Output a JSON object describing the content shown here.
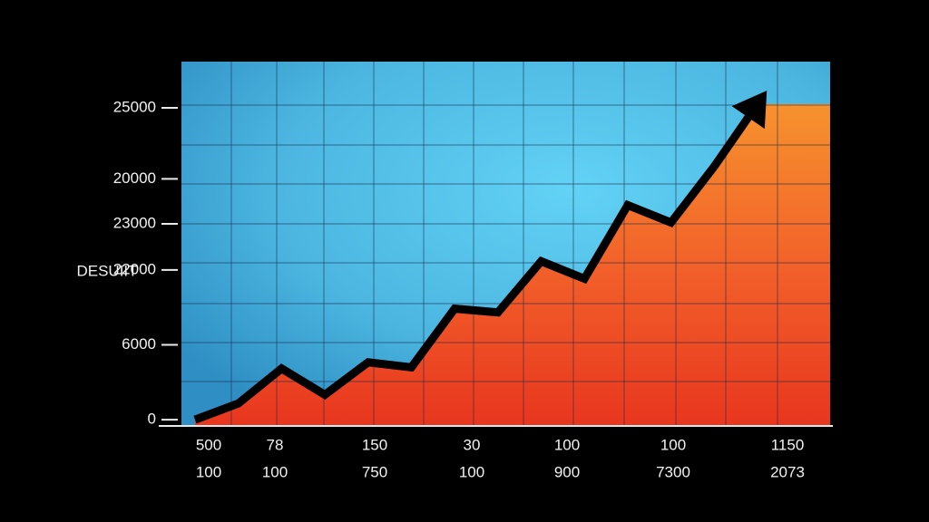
{
  "chart_data": {
    "type": "area",
    "ylabel": "DESUIIT",
    "values": [
      0,
      1300,
      4100,
      2000,
      4600,
      4200,
      8900,
      8600,
      12700,
      11300,
      17200,
      15800,
      20300,
      25300
    ],
    "ylim": [
      -500,
      28700
    ],
    "yticks": [
      0,
      6000,
      {
        "value": 12000,
        "label": "22000"
      },
      {
        "value": 15700,
        "label": "23000"
      },
      {
        "value": 19300,
        "label": "20000"
      },
      {
        "value": 25000,
        "label": "25000"
      }
    ],
    "x_labels": [
      [
        "500",
        "78",
        "150",
        "30",
        "100",
        "100",
        "1150"
      ],
      [
        "100",
        "100",
        "750",
        "100",
        "900",
        "7300",
        "2073"
      ]
    ],
    "grid": true,
    "line_color": "#000000",
    "background_color": "#4cb6e0",
    "fill_color": "#f2612a"
  }
}
